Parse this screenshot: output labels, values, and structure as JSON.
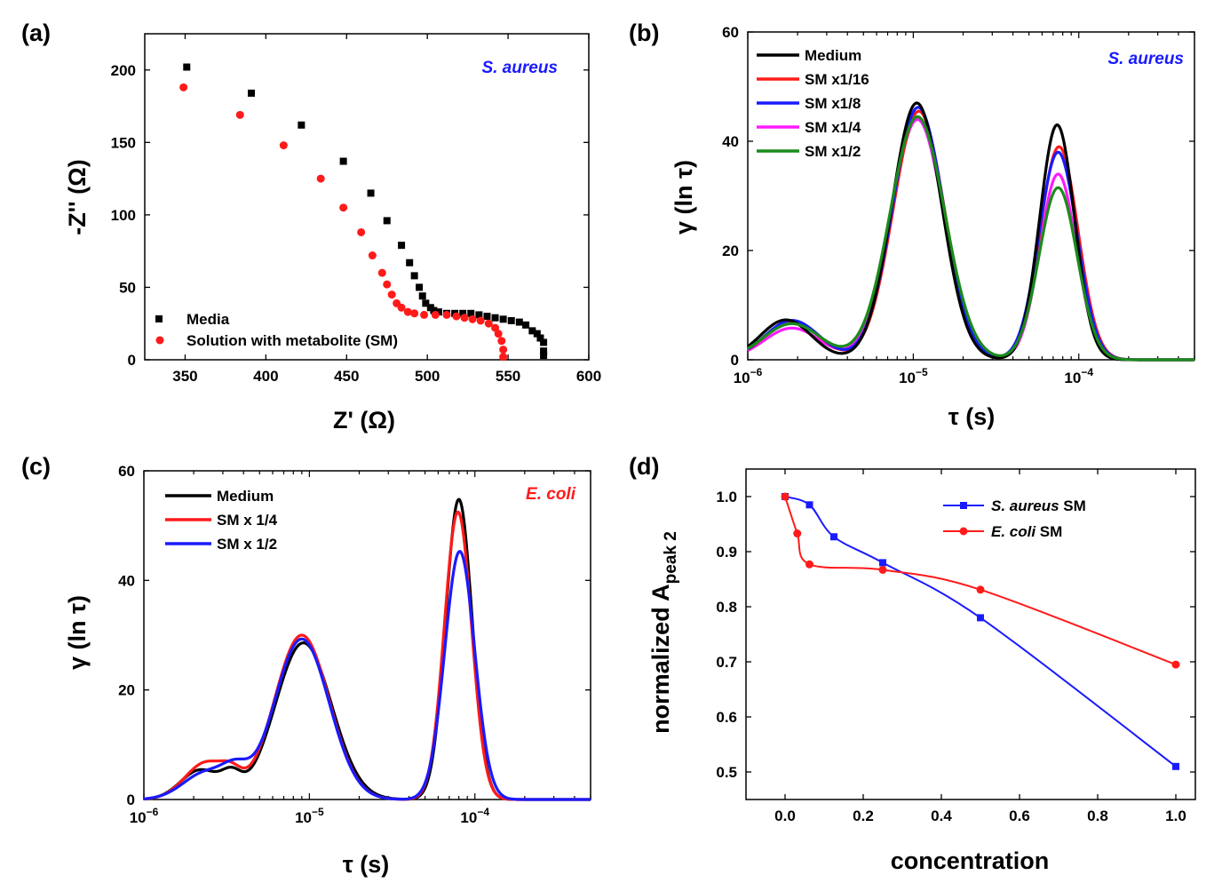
{
  "chart_data": [
    {
      "panel": "(a)",
      "type": "scatter",
      "annotation": "S. aureus",
      "annotation_color": "#1a1aff",
      "xlabel": "Z' (Ω)",
      "ylabel": "-Z'' (Ω)",
      "xlim": [
        325,
        600
      ],
      "ylim": [
        0,
        225
      ],
      "xticks": [
        "350",
        "400",
        "450",
        "500",
        "550",
        "600"
      ],
      "yticks": [
        "0",
        "50",
        "100",
        "150",
        "200"
      ],
      "legend_position": "bottom-left",
      "series": [
        {
          "name": "Media",
          "color": "#000000",
          "marker": "square",
          "points": [
            [
              351,
              202
            ],
            [
              391,
              184
            ],
            [
              422,
              162
            ],
            [
              448,
              137
            ],
            [
              465,
              115
            ],
            [
              475,
              96
            ],
            [
              484,
              79
            ],
            [
              489,
              67
            ],
            [
              492,
              58
            ],
            [
              495,
              50
            ],
            [
              497,
              44
            ],
            [
              499,
              39
            ],
            [
              502,
              36
            ],
            [
              504,
              34
            ],
            [
              507,
              33
            ],
            [
              512,
              32
            ],
            [
              517,
              32
            ],
            [
              522,
              32
            ],
            [
              527,
              32
            ],
            [
              532,
              31
            ],
            [
              537,
              30
            ],
            [
              542,
              29
            ],
            [
              547,
              28
            ],
            [
              552,
              27
            ],
            [
              557,
              26
            ],
            [
              561,
              24
            ],
            [
              565,
              20
            ],
            [
              568,
              18
            ],
            [
              570,
              15
            ],
            [
              572,
              12
            ],
            [
              572,
              6
            ],
            [
              572,
              3
            ]
          ]
        },
        {
          "name": "Solution with metabolite (SM)",
          "color": "#ff1a1a",
          "marker": "circle",
          "points": [
            [
              349,
              188
            ],
            [
              384,
              169
            ],
            [
              411,
              148
            ],
            [
              434,
              125
            ],
            [
              448,
              105
            ],
            [
              459,
              88
            ],
            [
              466,
              72
            ],
            [
              472,
              60
            ],
            [
              475,
              52
            ],
            [
              478,
              45
            ],
            [
              481,
              39
            ],
            [
              484,
              36
            ],
            [
              488,
              33
            ],
            [
              492,
              32
            ],
            [
              498,
              31
            ],
            [
              505,
              31
            ],
            [
              512,
              31
            ],
            [
              518,
              30
            ],
            [
              523,
              29
            ],
            [
              528,
              28
            ],
            [
              533,
              27
            ],
            [
              538,
              25
            ],
            [
              542,
              22
            ],
            [
              544,
              18
            ],
            [
              546,
              13
            ],
            [
              547,
              7
            ],
            [
              547,
              2
            ]
          ]
        }
      ]
    },
    {
      "panel": "(b)",
      "type": "line",
      "annotation": "S. aureus",
      "annotation_color": "#1a1aff",
      "xlabel": "τ (s)",
      "ylabel": "γ (ln τ)",
      "xscale": "log",
      "xlim": [
        1e-06,
        0.0005
      ],
      "ylim": [
        0,
        60
      ],
      "xticks": [
        "1e-6",
        "1e-5",
        "1e-4"
      ],
      "yticks": [
        "0",
        "20",
        "40",
        "60"
      ],
      "legend_position": "top-left",
      "series": [
        {
          "name": "Medium",
          "color": "#000000",
          "peaks": [
            [
              1.7e-06,
              7.3,
              0.155
            ],
            [
              1.05e-05,
              47.0,
              0.15
            ],
            [
              7.4e-05,
              43.0,
              0.105
            ]
          ]
        },
        {
          "name": "SM x1/16",
          "color": "#ff1a1a",
          "peaks": [
            [
              1.85e-06,
              7.0,
              0.165
            ],
            [
              1.08e-05,
              45.5,
              0.155
            ],
            [
              7.6e-05,
              39.0,
              0.115
            ]
          ]
        },
        {
          "name": "SM x1/8",
          "color": "#1a1aff",
          "peaks": [
            [
              1.85e-06,
              7.2,
              0.165
            ],
            [
              1.07e-05,
              46.2,
              0.155
            ],
            [
              7.5e-05,
              38.0,
              0.115
            ]
          ]
        },
        {
          "name": "SM x1/4",
          "color": "#ff1aff",
          "peaks": [
            [
              1.85e-06,
              5.8,
              0.17
            ],
            [
              1.06e-05,
              44.0,
              0.16
            ],
            [
              7.5e-05,
              34.0,
              0.11
            ]
          ]
        },
        {
          "name": "SM x1/2",
          "color": "#1a8c1a",
          "peaks": [
            [
              1.85e-06,
              6.6,
              0.175
            ],
            [
              1.06e-05,
              44.5,
              0.165
            ],
            [
              7.5e-05,
              31.5,
              0.115
            ]
          ]
        }
      ]
    },
    {
      "panel": "(c)",
      "type": "line",
      "annotation": "E. coli",
      "annotation_color": "#ff1a1a",
      "xlabel": "τ (s)",
      "ylabel": "γ (ln τ)",
      "xscale": "log",
      "xlim": [
        1e-06,
        0.0005
      ],
      "ylim": [
        0,
        60
      ],
      "xticks": [
        "1e-6",
        "1e-5",
        "1e-4"
      ],
      "yticks": [
        "0",
        "20",
        "40",
        "60"
      ],
      "legend_position": "top-left",
      "series": [
        {
          "name": "Medium",
          "color": "#000000",
          "peaks": [
            [
              2.2e-06,
              5.4,
              0.12
            ],
            [
              3.4e-06,
              3.2,
              0.06
            ],
            [
              9.2e-06,
              28.6,
              0.17
            ],
            [
              8e-05,
              54.8,
              0.08
            ]
          ]
        },
        {
          "name": "SM x 1/4",
          "color": "#ff1a1a",
          "peaks": [
            [
              2.4e-06,
              6.8,
              0.13
            ],
            [
              3.4e-06,
              2.2,
              0.06
            ],
            [
              9e-06,
              30.0,
              0.165
            ],
            [
              7.9e-05,
              52.5,
              0.082
            ]
          ]
        },
        {
          "name": "SM x 1/2",
          "color": "#1a1aff",
          "peaks": [
            [
              2.4e-06,
              5.0,
              0.14
            ],
            [
              3.6e-06,
              3.5,
              0.08
            ],
            [
              9e-06,
              29.3,
              0.165
            ],
            [
              8.1e-05,
              45.3,
              0.09
            ]
          ]
        }
      ]
    },
    {
      "panel": "(d)",
      "type": "line",
      "xlabel": "concentration",
      "ylabel": "normalized A",
      "ylabel_sub": "peak 2",
      "xlim": [
        -0.1,
        1.05
      ],
      "ylim": [
        0.45,
        1.05
      ],
      "xticks": [
        "0.0",
        "0.2",
        "0.4",
        "0.6",
        "0.8",
        "1.0"
      ],
      "yticks": [
        "0.5",
        "0.6",
        "0.7",
        "0.8",
        "0.9",
        "1.0"
      ],
      "legend_position": "top-right",
      "series": [
        {
          "name": "S. aureus",
          "name_suffix": " SM",
          "color": "#1a1aff",
          "marker": "square",
          "points": [
            [
              0,
              1.0
            ],
            [
              0.0625,
              0.985
            ],
            [
              0.125,
              0.927
            ],
            [
              0.25,
              0.88
            ],
            [
              0.5,
              0.78
            ],
            [
              1.0,
              0.51
            ]
          ]
        },
        {
          "name": "E. coli",
          "name_suffix": " SM",
          "color": "#ff1a1a",
          "marker": "circle",
          "points": [
            [
              0,
              1.0
            ],
            [
              0.03125,
              0.933
            ],
            [
              0.0625,
              0.877
            ],
            [
              0.25,
              0.867
            ],
            [
              0.5,
              0.831
            ],
            [
              1.0,
              0.695
            ]
          ]
        }
      ]
    }
  ]
}
